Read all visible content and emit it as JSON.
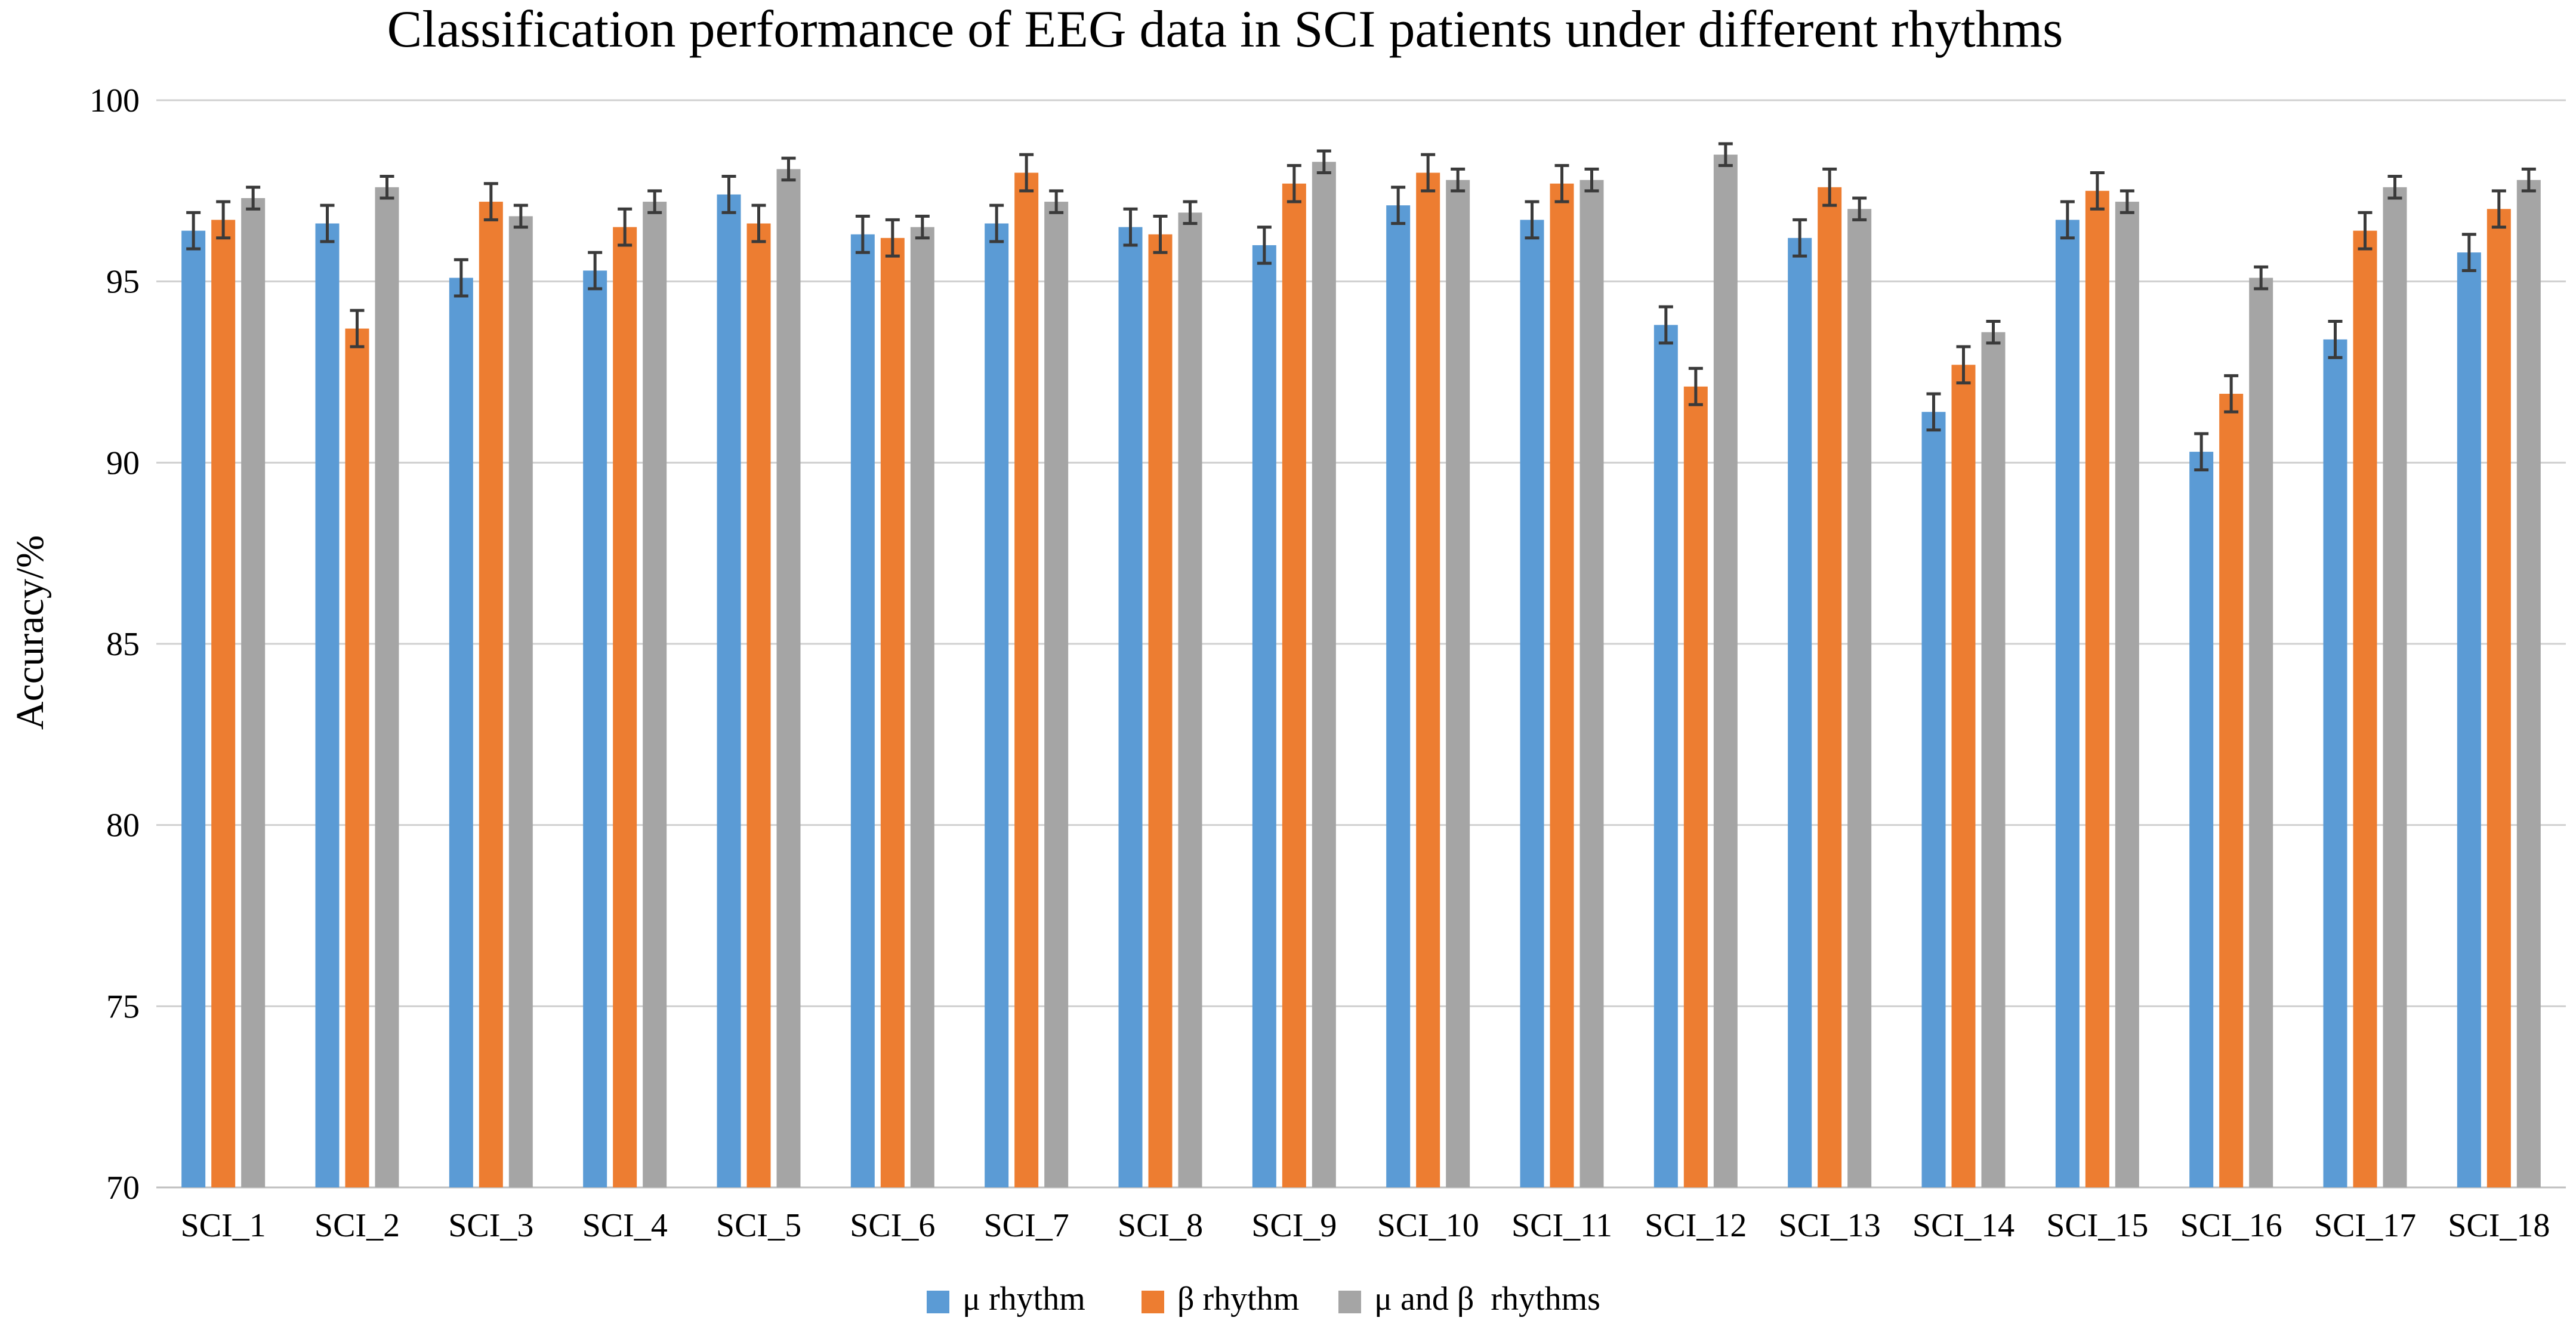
{
  "chart_data": {
    "type": "bar",
    "title": "Classification performance of EEG data in SCI patients under different rhythms",
    "xlabel": "",
    "ylabel": "Accuracy/%",
    "ylim": [
      70,
      100
    ],
    "yticks": [
      70,
      75,
      80,
      85,
      90,
      95,
      100
    ],
    "grid": true,
    "legend_position": "bottom",
    "categories": [
      "SCI_1",
      "SCI_2",
      "SCI_3",
      "SCI_4",
      "SCI_5",
      "SCI_6",
      "SCI_7",
      "SCI_8",
      "SCI_9",
      "SCI_10",
      "SCI_11",
      "SCI_12",
      "SCI_13",
      "SCI_14",
      "SCI_15",
      "SCI_16",
      "SCI_17",
      "SCI_18"
    ],
    "series": [
      {
        "name": "μ rhythm",
        "color": "#5B9BD5",
        "values": [
          96.4,
          96.6,
          95.1,
          95.3,
          97.4,
          96.3,
          96.6,
          96.5,
          96.0,
          97.1,
          96.7,
          93.8,
          96.2,
          91.4,
          96.7,
          90.3,
          93.4,
          95.8
        ],
        "errors": [
          0.5,
          0.5,
          0.5,
          0.5,
          0.5,
          0.5,
          0.5,
          0.5,
          0.5,
          0.5,
          0.5,
          0.5,
          0.5,
          0.5,
          0.5,
          0.5,
          0.5,
          0.5
        ]
      },
      {
        "name": "β rhythm",
        "color": "#ED7D31",
        "values": [
          96.7,
          93.7,
          97.2,
          96.5,
          96.6,
          96.2,
          98.0,
          96.3,
          97.7,
          98.0,
          97.7,
          92.1,
          97.6,
          92.7,
          97.5,
          91.9,
          96.4,
          97.0
        ],
        "errors": [
          0.5,
          0.5,
          0.5,
          0.5,
          0.5,
          0.5,
          0.5,
          0.5,
          0.5,
          0.5,
          0.5,
          0.5,
          0.5,
          0.5,
          0.5,
          0.5,
          0.5,
          0.5
        ]
      },
      {
        "name": "μ and β  rhythms",
        "color": "#A5A5A5",
        "values": [
          97.3,
          97.6,
          96.8,
          97.2,
          98.1,
          96.5,
          97.2,
          96.9,
          98.3,
          97.8,
          97.8,
          98.5,
          97.0,
          93.6,
          97.2,
          95.1,
          97.6,
          97.8
        ],
        "errors": [
          0.3,
          0.3,
          0.3,
          0.3,
          0.3,
          0.3,
          0.3,
          0.3,
          0.3,
          0.3,
          0.3,
          0.3,
          0.3,
          0.3,
          0.3,
          0.3,
          0.3,
          0.3
        ]
      }
    ]
  }
}
